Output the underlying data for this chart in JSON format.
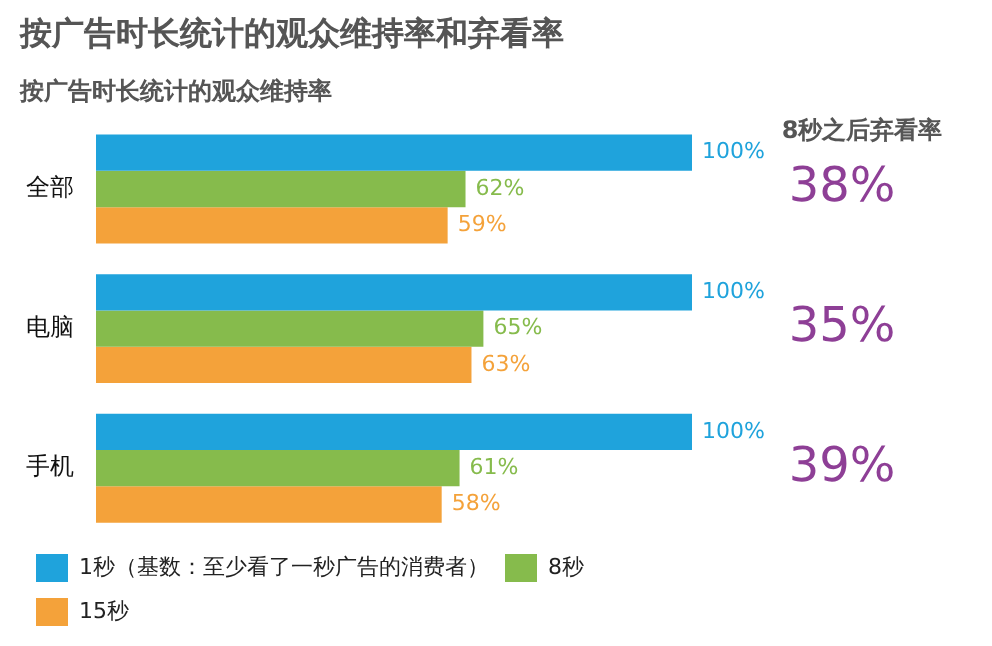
{
  "chart_data": {
    "type": "bar",
    "orientation": "horizontal",
    "title": "按广告时长统计的观众维持率和弃看率",
    "subtitle": "按广告时长统计的观众维持率",
    "categories": [
      "全部",
      "电脑",
      "手机"
    ],
    "series": [
      {
        "name": "1秒（基数：至少看了一秒广告的消费者）",
        "color": "#1fa3dc",
        "values": [
          100,
          100,
          100
        ],
        "value_labels": [
          "100%",
          "100%",
          "100%"
        ]
      },
      {
        "name": "8秒",
        "color": "#86bb4c",
        "values": [
          62,
          65,
          61
        ],
        "value_labels": [
          "62%",
          "65%",
          "61%"
        ]
      },
      {
        "name": "15秒",
        "color": "#f4a23a",
        "values": [
          59,
          63,
          58
        ],
        "value_labels": [
          "59%",
          "63%",
          "58%"
        ]
      }
    ],
    "annotations": [
      "8秒之后弃看率",
      "38%",
      "35%",
      "39%"
    ],
    "legend": "bottom"
  }
}
